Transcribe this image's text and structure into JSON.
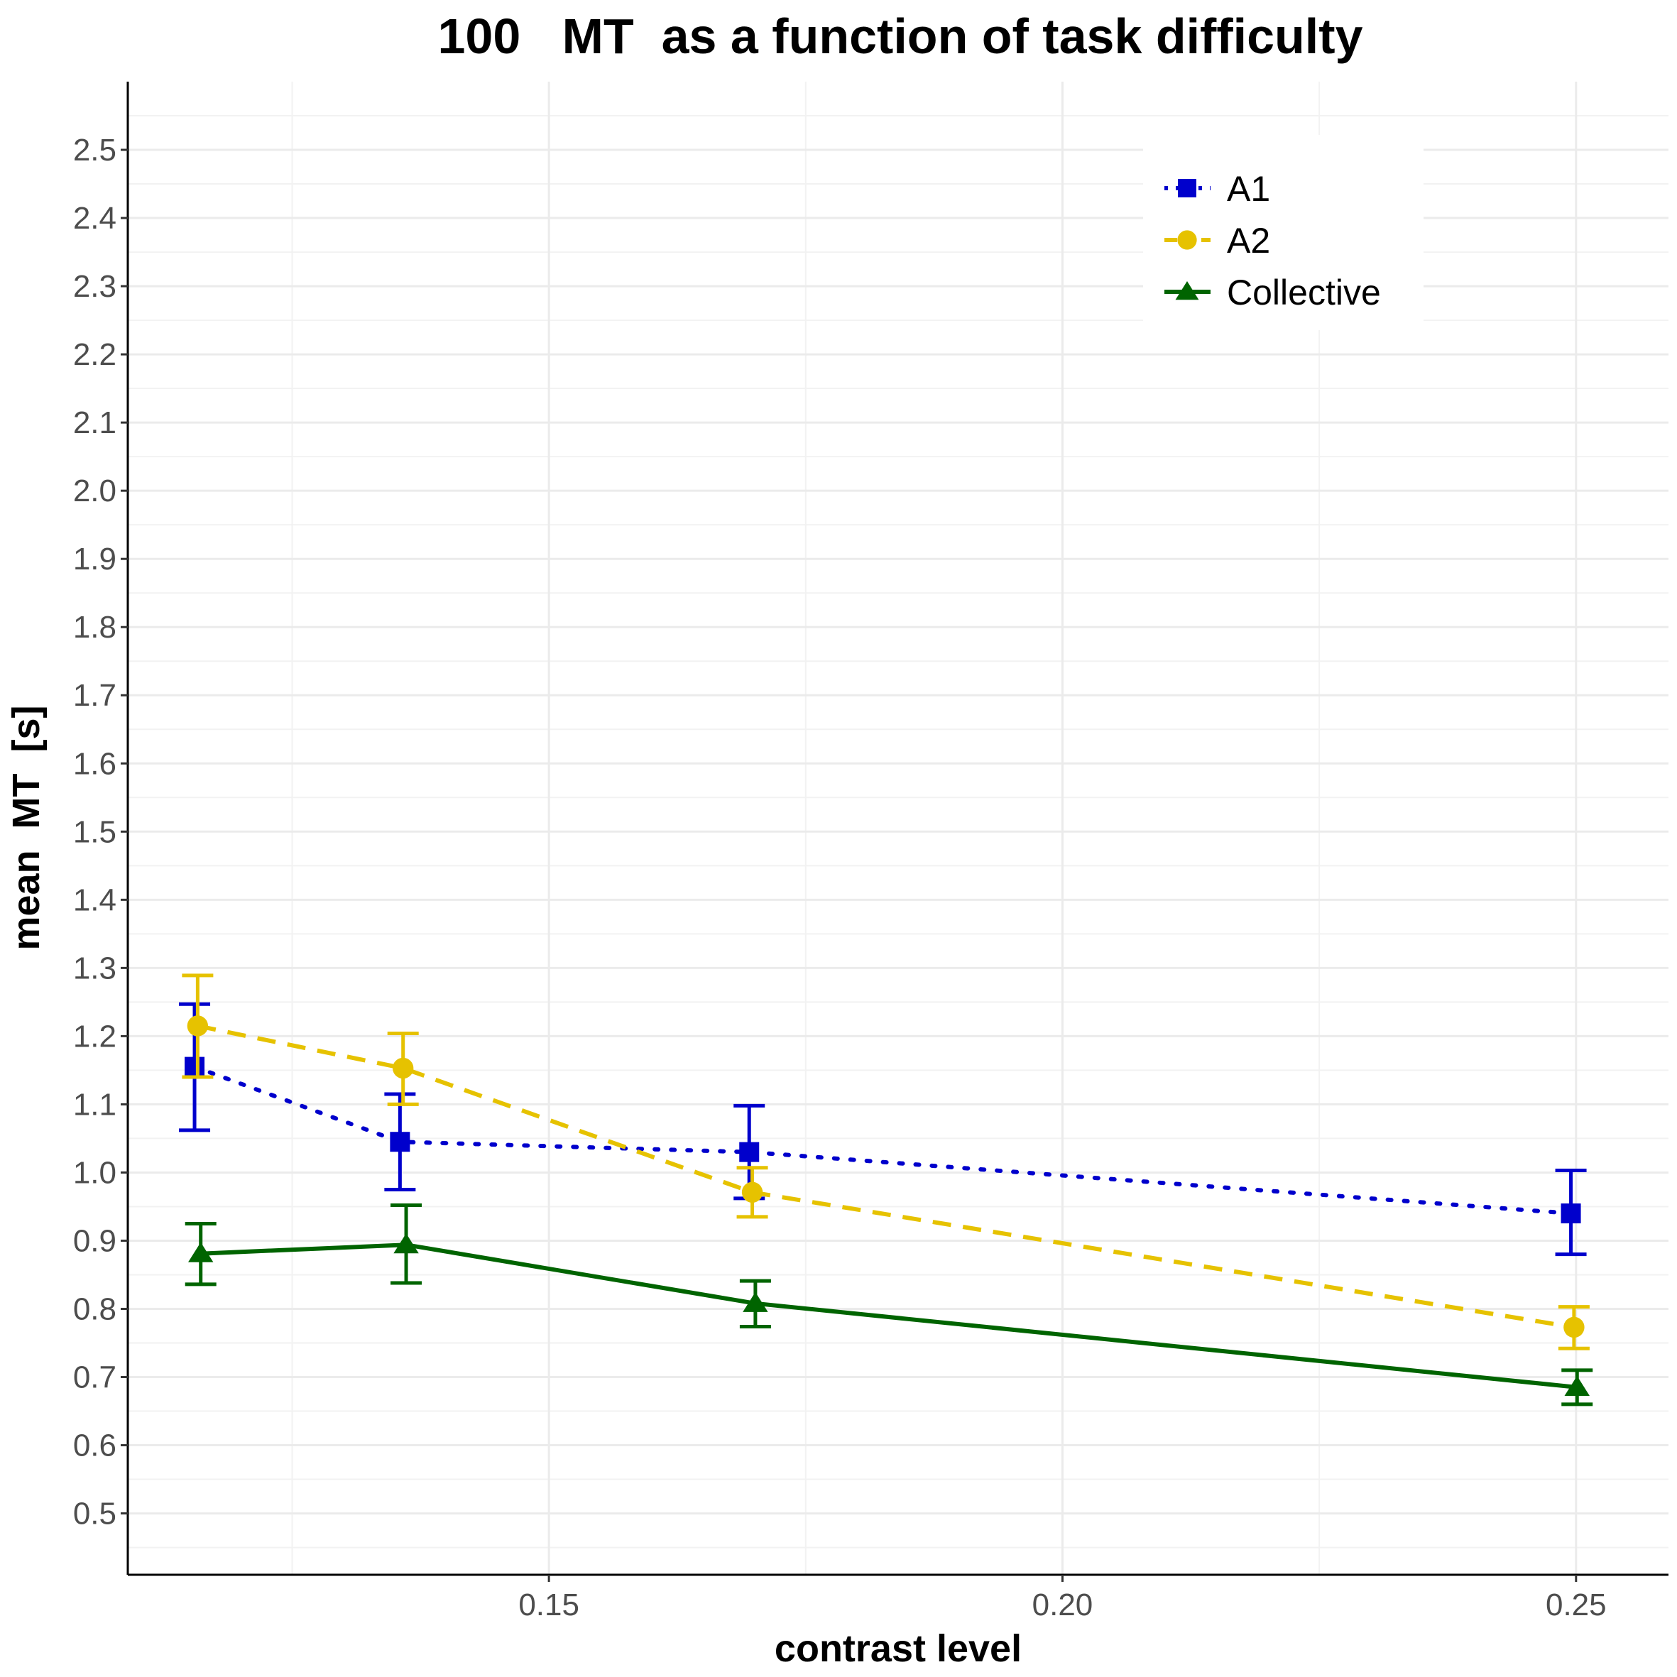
{
  "chart_data": {
    "type": "line",
    "title": "100   MT  as a function of task difficulty",
    "xlabel": "contrast level",
    "ylabel": "mean  MT  [s]",
    "xlim": [
      0.109,
      0.259
    ],
    "ylim": [
      0.41,
      2.6
    ],
    "x_ticks": [
      0.15,
      0.2,
      0.25
    ],
    "x_tick_labels": [
      "0.15",
      "0.20",
      "0.25"
    ],
    "x_minor": [
      0.125,
      0.175,
      0.225
    ],
    "y_ticks": [
      0.5,
      0.6,
      0.7,
      0.8,
      0.9,
      1.0,
      1.1,
      1.2,
      1.3,
      1.4,
      1.5,
      1.6,
      1.7,
      1.8,
      1.9,
      2.0,
      2.1,
      2.2,
      2.3,
      2.4,
      2.5
    ],
    "y_tick_labels": [
      "0.5",
      "0.6",
      "0.7",
      "0.8",
      "0.9",
      "1.0",
      "1.1",
      "1.2",
      "1.3",
      "1.4",
      "1.5",
      "1.6",
      "1.7",
      "1.8",
      "1.9",
      "2.0",
      "2.1",
      "2.2",
      "2.3",
      "2.4",
      "2.5"
    ],
    "grid": true,
    "legend_position": "top-right",
    "series": [
      {
        "name": "A1",
        "color": "#0000cc",
        "marker": "square",
        "line_style": "dotted",
        "x": [
          0.1155,
          0.1355,
          0.1695,
          0.2495
        ],
        "y": [
          1.155,
          1.045,
          1.03,
          0.94
        ],
        "err_low": [
          1.062,
          0.975,
          0.962,
          0.88
        ],
        "err_high": [
          1.247,
          1.115,
          1.098,
          1.003
        ]
      },
      {
        "name": "A2",
        "color": "#e6c200",
        "marker": "circle",
        "line_style": "dashed",
        "x": [
          0.1158,
          0.1358,
          0.1698,
          0.2498
        ],
        "y": [
          1.215,
          1.153,
          0.971,
          0.773
        ],
        "err_low": [
          1.14,
          1.1,
          0.935,
          0.742
        ],
        "err_high": [
          1.289,
          1.204,
          1.007,
          0.803
        ]
      },
      {
        "name": "Collective",
        "color": "#006400",
        "marker": "triangle",
        "line_style": "solid",
        "x": [
          0.1161,
          0.1361,
          0.1701,
          0.2501
        ],
        "y": [
          0.881,
          0.894,
          0.808,
          0.685
        ],
        "err_low": [
          0.836,
          0.838,
          0.774,
          0.66
        ],
        "err_high": [
          0.925,
          0.952,
          0.841,
          0.71
        ]
      }
    ]
  }
}
